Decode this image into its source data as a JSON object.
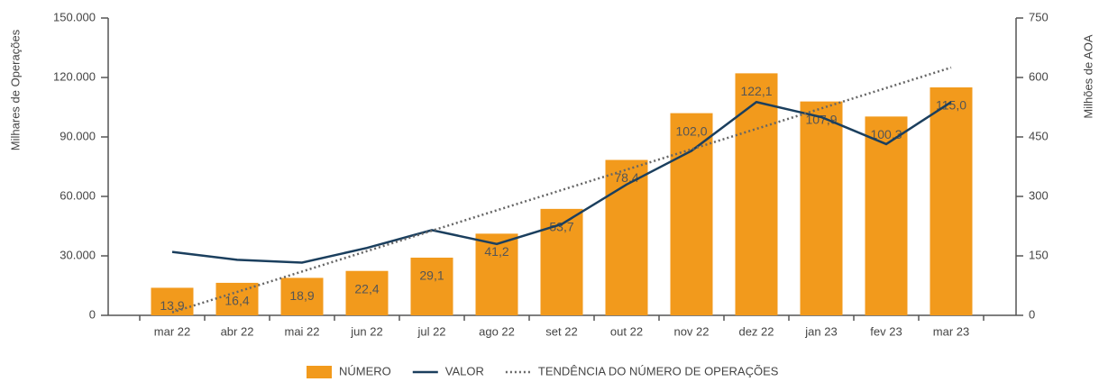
{
  "chart_data": {
    "type": "bar",
    "y_label": "Milhares de Operações",
    "y2_label": "Milhões de AOA",
    "categories": [
      "mar 22",
      "abr 22",
      "mai 22",
      "jun 22",
      "jul 22",
      "ago 22",
      "set 22",
      "out 22",
      "nov 22",
      "dez 22",
      "jan 23",
      "fev 23",
      "mar 23"
    ],
    "series": [
      {
        "name": "NÚMERO",
        "kind": "bar",
        "color": "#f29a1c",
        "values": [
          13900,
          16400,
          18900,
          22400,
          29100,
          41200,
          53700,
          78400,
          102000,
          122100,
          107900,
          100300,
          115000
        ],
        "value_labels": [
          "13,9",
          "16,4",
          "18,9",
          "22,4",
          "29,1",
          "41,2",
          "53,7",
          "78,4",
          "102,0",
          "122,1",
          "107,9",
          "100,3",
          "115,0"
        ]
      },
      {
        "name": "VALOR",
        "kind": "line",
        "axis": "y2",
        "color": "#1b3f5e",
        "values": [
          160,
          140,
          133,
          170,
          215,
          180,
          230,
          330,
          415,
          538,
          500,
          432,
          538
        ]
      },
      {
        "name": "TENDÊNCIA DO NÚMERO DE OPERAÇÕES",
        "kind": "line",
        "dash": "dotted",
        "color": "#666666",
        "values": [
          1500,
          11800,
          22100,
          32400,
          42700,
          53000,
          63200,
          73500,
          83800,
          94100,
          104400,
          114700,
          125000
        ]
      }
    ],
    "ylim": [
      0,
      150000
    ],
    "yticks": [
      0,
      {
        "value": 30000,
        "label": "30.000"
      },
      {
        "value": 60000,
        "label": "60.000"
      },
      {
        "value": 90000,
        "label": "90.000"
      },
      {
        "value": 120000,
        "label": "120.000"
      },
      {
        "value": 150000,
        "label": "150.000"
      }
    ],
    "y2lim": [
      0,
      750
    ],
    "y2ticks": [
      0,
      150,
      300,
      450,
      600,
      750
    ],
    "grid": false
  }
}
